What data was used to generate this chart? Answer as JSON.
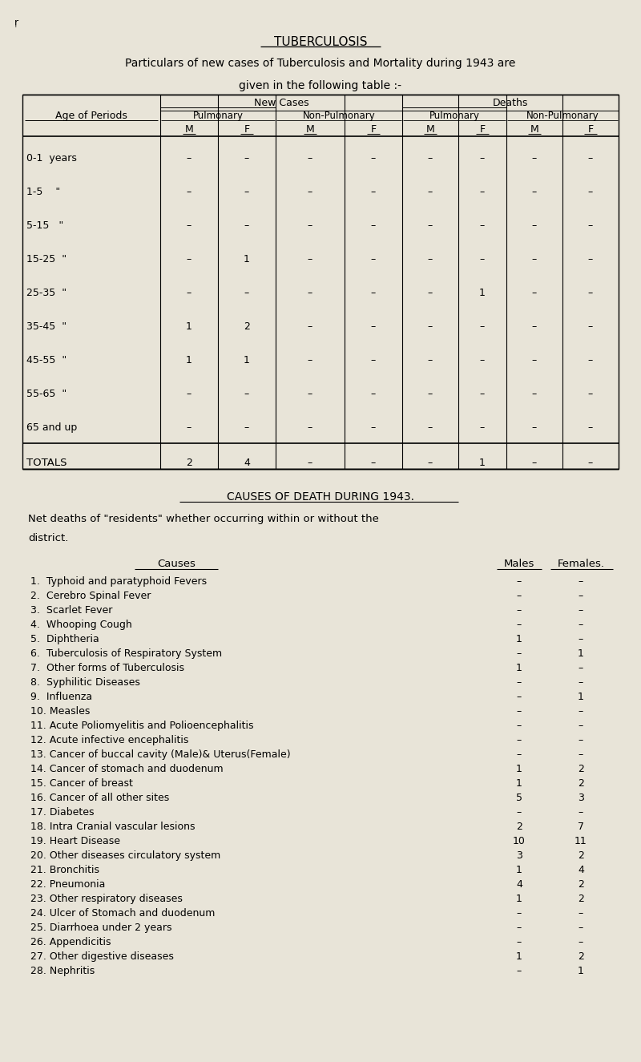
{
  "bg_color": "#e8e4d8",
  "title": "TUBERCULOSIS",
  "subtitle1": "Particulars of new cases of Tuberculosis and Mortality during 1943 are",
  "subtitle2": "given in the following table :-",
  "col_label": "Age of Periods",
  "mf_labels": [
    "M",
    "F",
    "M",
    "F",
    "M",
    "F",
    "M",
    "F"
  ],
  "age_rows": [
    "0-1  years",
    "1-5    \"",
    "5-15   \"",
    "15-25  \"",
    "25-35  \"",
    "35-45  \"",
    "45-55  \"",
    "55-65  \"",
    "65 and up"
  ],
  "table_data": [
    [
      "-",
      "-",
      "-",
      "-",
      "-",
      "-",
      "-",
      "-"
    ],
    [
      "-",
      "-",
      "-",
      "-",
      "-",
      "-",
      "-",
      "-"
    ],
    [
      "-",
      "-",
      "-",
      "-",
      "-",
      "-",
      "-",
      "-"
    ],
    [
      "*",
      "1",
      "-",
      "-",
      "-",
      "-",
      "-",
      "-"
    ],
    [
      "-",
      "-",
      "-",
      "-",
      "-",
      "1",
      "-",
      "-"
    ],
    [
      "1",
      "2",
      "-",
      "-",
      "-",
      "-",
      "-",
      "-"
    ],
    [
      "1",
      "1",
      "-",
      "-",
      "-",
      "-",
      "-",
      "-"
    ],
    [
      "-",
      "-",
      "-",
      "-",
      "-",
      "-",
      "-",
      "-"
    ],
    [
      "-",
      "-",
      "-",
      "-",
      "-",
      "-",
      "-",
      "-"
    ]
  ],
  "totals_row": [
    "2",
    "4",
    "-",
    "-",
    "-",
    "1",
    "-",
    "-"
  ],
  "totals_label": "TOTALS",
  "section2_title": "CAUSES OF DEATH DURING 1943.",
  "section2_subtitle": "Net deaths of \"residents\" whether occurring within or without the",
  "section2_subtitle2": "district.",
  "causes_header_left": "Causes",
  "causes_header_males": "Males",
  "causes_header_females": "Females.",
  "causes": [
    "1.  Typhoid and paratyphoid Fevers",
    "2.  Cerebro Spinal Fever",
    "3.  Scarlet Fever",
    "4.  Whooping Cough",
    "5.  Diphtheria",
    "6.  Tuberculosis of Respiratory System",
    "7.  Other forms of Tuberculosis",
    "8.  Syphilitic Diseases",
    "9.  Influenza",
    "10. Measles",
    "11. Acute Poliomyelitis and Polioencephalitis",
    "12. Acute infective encephalitis",
    "13. Cancer of buccal cavity (Male)& Uterus(Female)",
    "14. Cancer of stomach and duodenum",
    "15. Cancer of breast",
    "16. Cancer of all other sites",
    "17. Diabetes",
    "18. Intra Cranial vascular lesions",
    "19. Heart Disease",
    "20. Other diseases circulatory system",
    "21. Bronchitis",
    "22. Pneumonia",
    "23. Other respiratory diseases",
    "24. Ulcer of Stomach and duodenum",
    "25. Diarrhoea under 2 years",
    "26. Appendicitis",
    "27. Other digestive diseases",
    "28. Nephritis"
  ],
  "males_vals": [
    "-",
    "-",
    "-",
    "-",
    "1",
    "-",
    "1",
    "-",
    "-",
    "-",
    "-",
    "-",
    "-",
    "1",
    "1",
    "5",
    "-",
    "2",
    "10",
    "3",
    "1",
    "4",
    "1",
    "-",
    "-",
    "-",
    "1",
    "-"
  ],
  "females_vals": [
    "-",
    "-",
    "-",
    "-",
    "-",
    "1",
    "-",
    "-",
    "1",
    "-",
    "-",
    "-",
    "-",
    "2",
    "2",
    "3",
    "-",
    "7",
    "11",
    "2",
    "4",
    "2",
    "2",
    "-",
    "-",
    "-",
    "2",
    "1"
  ]
}
